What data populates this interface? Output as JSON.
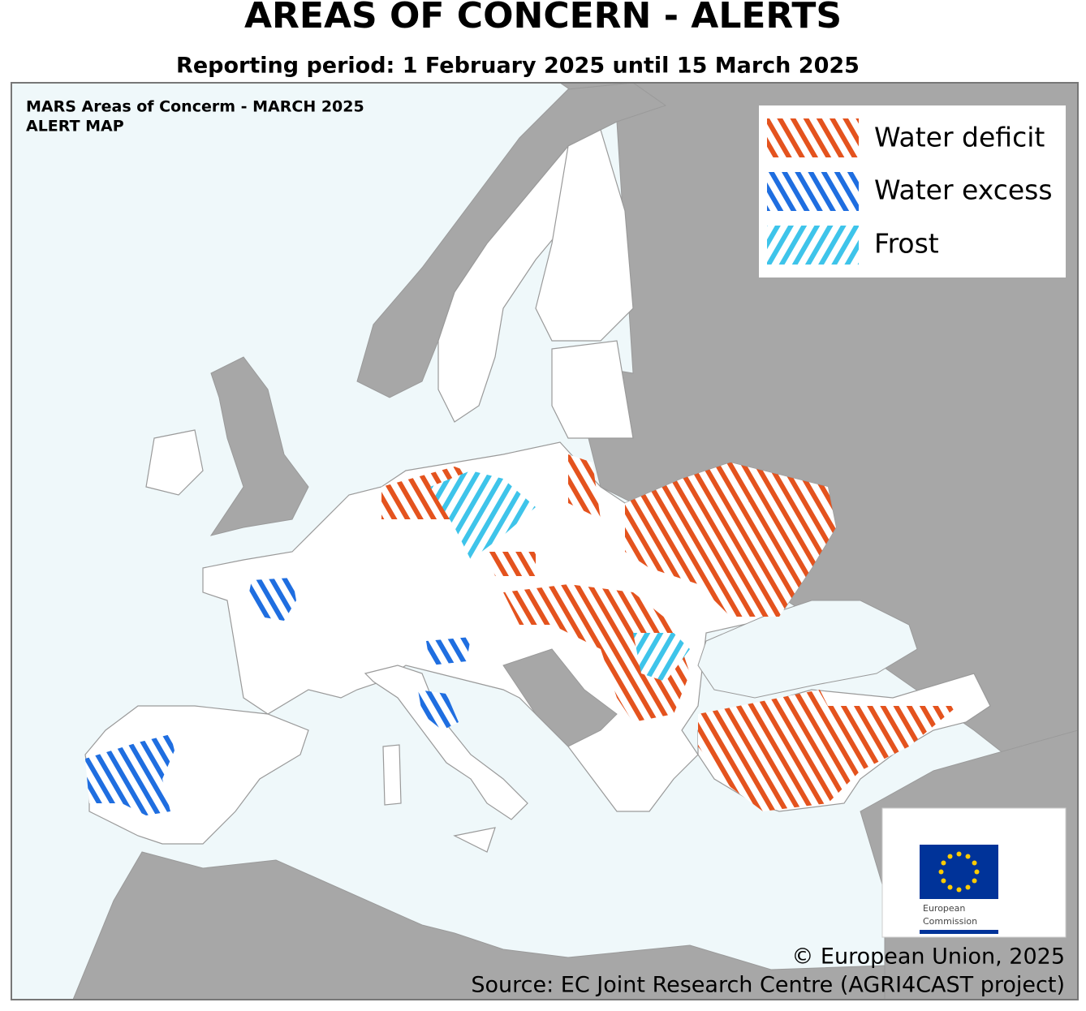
{
  "header": {
    "title": "AREAS OF CONCERN - ALERTS",
    "subtitle": "Reporting period: 1 February 2025 until 15 March 2025"
  },
  "map": {
    "title_lines": [
      "MARS Areas of Concerm - MARCH 2025",
      "ALERT MAP"
    ]
  },
  "legend": {
    "items": [
      {
        "label": "Water deficit"
      },
      {
        "label": "Water excess"
      },
      {
        "label": "Frost"
      }
    ]
  },
  "logo": {
    "lines": [
      "European",
      "Commission"
    ]
  },
  "footer": {
    "copyright": "© European Union, 2025",
    "source": "Source: EC Joint Research Centre (AGRI4CAST project)"
  }
}
